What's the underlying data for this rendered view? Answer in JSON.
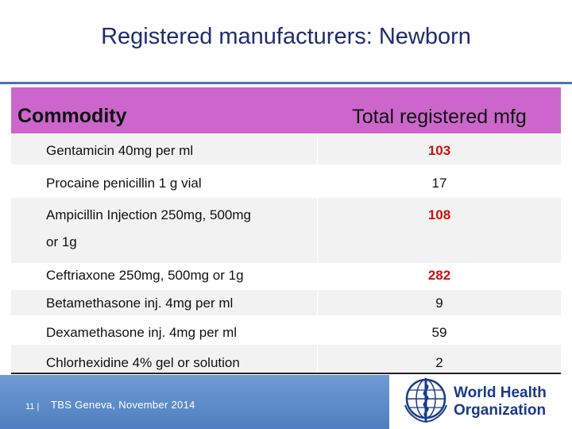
{
  "title": "Registered manufacturers: Newborn",
  "table": {
    "header": {
      "commodity": "Commodity",
      "total": "Total registered mfg"
    },
    "rows": [
      {
        "commodity": "Gentamicin 40mg per ml",
        "total": "103",
        "highlight": true
      },
      {
        "commodity": "Procaine penicillin 1 g vial",
        "total": "17",
        "highlight": false
      },
      {
        "commodity": "Ampicillin Injection 250mg, 500mg",
        "commodity_line2": "or 1g",
        "total": "108",
        "highlight": true
      },
      {
        "commodity": "Ceftriaxone 250mg, 500mg or 1g",
        "total": "282",
        "highlight": true
      },
      {
        "commodity": "Betamethasone inj. 4mg per ml",
        "total": "9",
        "highlight": false
      },
      {
        "commodity": "Dexamethasone inj. 4mg per ml",
        "total": "59",
        "highlight": false
      },
      {
        "commodity": "Chlorhexidine 4% gel or solution",
        "total": "2",
        "highlight": false
      }
    ]
  },
  "footer": {
    "page_number": "11 |",
    "text": "TBS Geneva, November 2014",
    "org_line1": "World Health",
    "org_line2": "Organization"
  },
  "colors": {
    "header_bg": "#cc66cc",
    "highlight_value": "#cc1111",
    "title": "#1f2d6e",
    "footer_band": "#5a88c8"
  }
}
